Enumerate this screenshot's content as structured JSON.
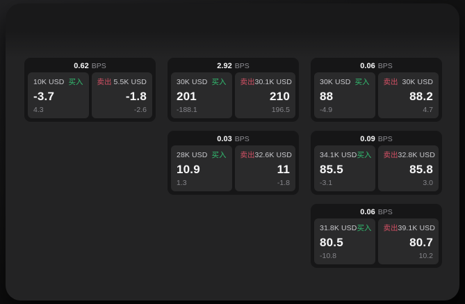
{
  "labels": {
    "bps": "BPS",
    "buy": "买入",
    "sell": "卖出"
  },
  "colors": {
    "window-top": "#19191a",
    "window-bg": "#232324",
    "card-bg": "#161617",
    "panel-bg": "#2a2a2b",
    "buy-green": "#32bd71",
    "sell-red": "#d15064",
    "text-bright": "#f7f7f8",
    "text-label": "#c9c9cd",
    "text-dim": "#8e8e93",
    "text-muted": "#85858a"
  },
  "cards": [
    {
      "bps": "0.62",
      "buy": {
        "notional": "10K USD",
        "price": "-3.7",
        "delta": "4.3"
      },
      "sell": {
        "notional": "5.5K USD",
        "price": "-1.8",
        "delta": "-2.6"
      }
    },
    {
      "bps": "2.92",
      "buy": {
        "notional": "30K USD",
        "price": "201",
        "delta": "-188.1"
      },
      "sell": {
        "notional": "30.1K USD",
        "price": "210",
        "delta": "196.5"
      }
    },
    {
      "bps": "0.06",
      "buy": {
        "notional": "30K USD",
        "price": "88",
        "delta": "-4.9"
      },
      "sell": {
        "notional": "30K USD",
        "price": "88.2",
        "delta": "4.7"
      }
    },
    {
      "bps": "0.03",
      "buy": {
        "notional": "28K USD",
        "price": "10.9",
        "delta": "1.3"
      },
      "sell": {
        "notional": "32.6K USD",
        "price": "11",
        "delta": "-1.8"
      }
    },
    {
      "bps": "0.09",
      "buy": {
        "notional": "34.1K USD",
        "price": "85.5",
        "delta": "-3.1"
      },
      "sell": {
        "notional": "32.8K USD",
        "price": "85.8",
        "delta": "3.0"
      }
    },
    {
      "bps": "0.06",
      "buy": {
        "notional": "31.8K USD",
        "price": "80.5",
        "delta": "-10.8"
      },
      "sell": {
        "notional": "39.1K USD",
        "price": "80.7",
        "delta": "10.2"
      }
    }
  ]
}
